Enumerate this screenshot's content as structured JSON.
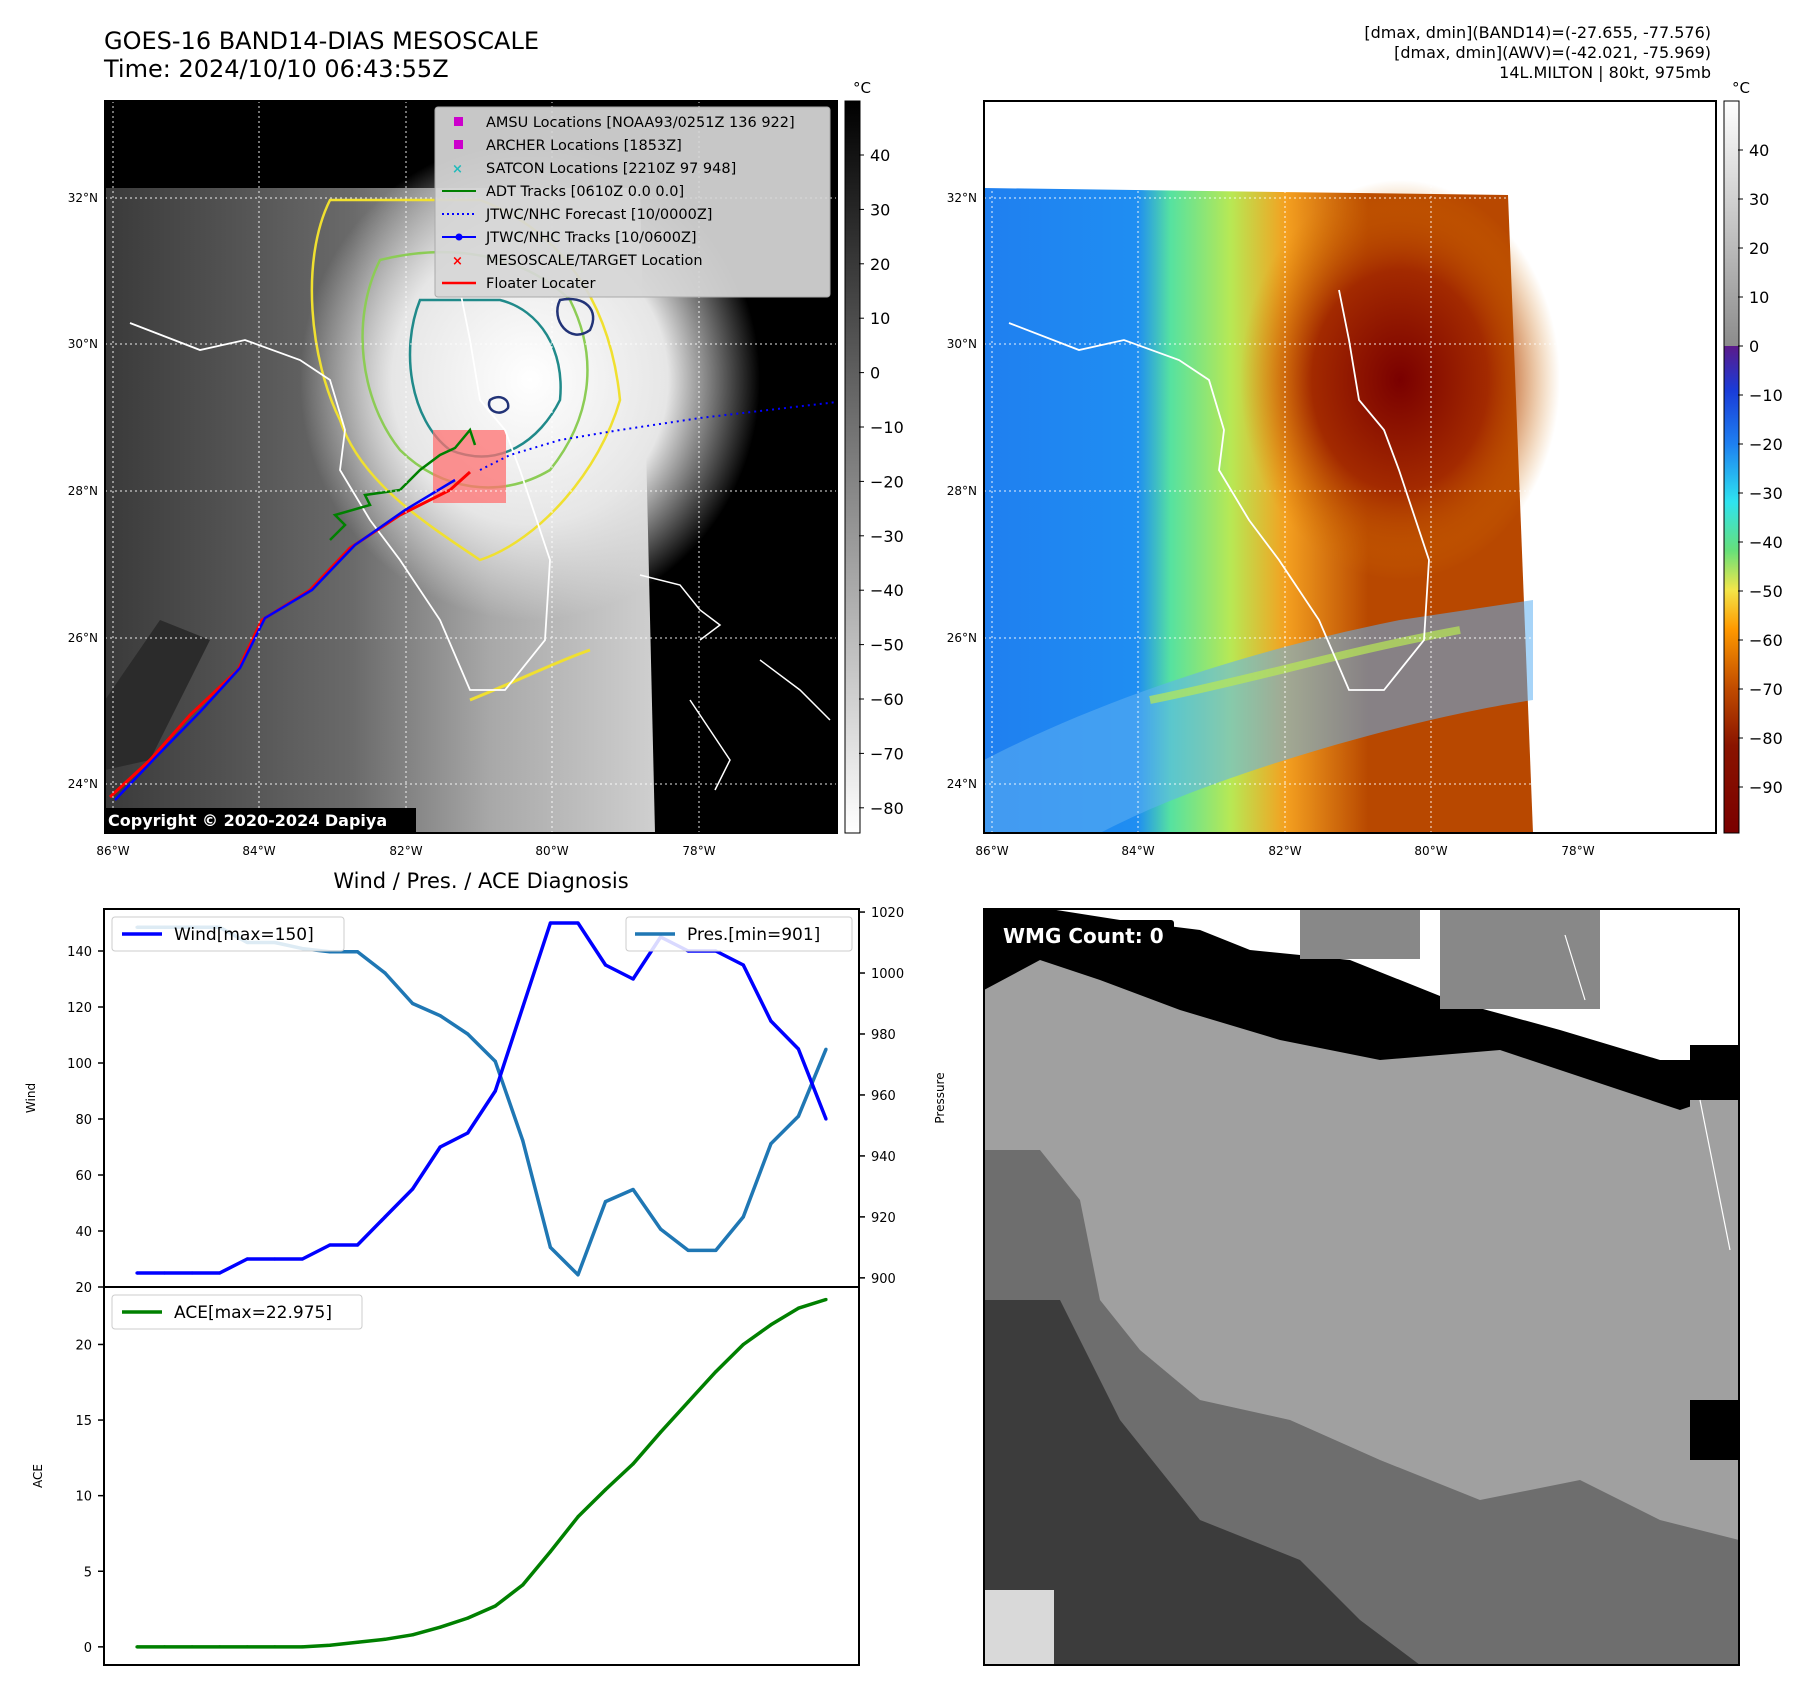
{
  "header": {
    "title_line1": "GOES-16 BAND14-DIAS MESOSCALE",
    "title_line2": "Time: 2024/10/10 06:43:55Z",
    "stats_line1": "[dmax, dmin](BAND14)=(-27.655, -77.576)",
    "stats_line2": "[dmax, dmin](AWV)=(-42.021, -75.969)",
    "stats_line3": "14L.MILTON | 80kt, 975mb"
  },
  "map": {
    "lat_labels": [
      "32°N",
      "30°N",
      "28°N",
      "26°N",
      "24°N"
    ],
    "lon_labels": [
      "86°W",
      "84°W",
      "82°W",
      "80°W",
      "78°W"
    ],
    "copyright": "Copyright © 2020-2024 Dapiya",
    "colorbar_unit": "°C",
    "band14_ticks": [
      "40",
      "30",
      "20",
      "10",
      "0",
      "−10",
      "−20",
      "−30",
      "−40",
      "−50",
      "−60",
      "−70",
      "−80"
    ],
    "awv_ticks": [
      "40",
      "30",
      "20",
      "10",
      "0",
      "−10",
      "−20",
      "−30",
      "−40",
      "−50",
      "−60",
      "−70",
      "−80",
      "−90"
    ],
    "legend": [
      {
        "label": "AMSU Locations [NOAA93/0251Z 136 922]",
        "color": "#cc00cc",
        "marker": "square"
      },
      {
        "label": "ARCHER Locations [1853Z]",
        "color": "#cc00cc",
        "marker": "square"
      },
      {
        "label": "SATCON Locations [2210Z 97 948]",
        "color": "#22bbbb",
        "marker": "x"
      },
      {
        "label": "ADT Tracks [0610Z 0.0 0.0]",
        "color": "#008000",
        "marker": "line"
      },
      {
        "label": "JTWC/NHC Forecast [10/0000Z]",
        "color": "#0000ff",
        "marker": "dotted"
      },
      {
        "label": "JTWC/NHC Tracks [10/0600Z]",
        "color": "#0000ff",
        "marker": "line-dot"
      },
      {
        "label": "MESOSCALE/TARGET Location",
        "color": "#ff0000",
        "marker": "x"
      },
      {
        "label": "Floater Locater",
        "color": "#ff0000",
        "marker": "line"
      }
    ]
  },
  "diag": {
    "title": "Wind / Pres. / ACE Diagnosis",
    "wind_ylabel": "Wind",
    "pres_ylabel": "Pressure",
    "ace_ylabel": "ACE",
    "wind_legend": "Wind[max=150]",
    "pres_legend": "Pres.[min=901]",
    "ace_legend": "ACE[max=22.975]",
    "wind_color": "#0000ff",
    "pres_color": "#1f77b4",
    "ace_color": "#008000"
  },
  "wmg": {
    "label": "WMG Count: 0"
  },
  "chart_data": [
    {
      "type": "line",
      "title": "Wind / Pres. / ACE Diagnosis",
      "ylabel": "Wind",
      "ylim": [
        20,
        155
      ],
      "yticks": [
        20,
        40,
        60,
        80,
        100,
        120,
        140
      ],
      "series": [
        {
          "name": "Wind[max=150]",
          "values": [
            25,
            25,
            25,
            25,
            30,
            30,
            30,
            35,
            35,
            45,
            55,
            70,
            75,
            90,
            120,
            150,
            150,
            135,
            130,
            145,
            140,
            140,
            135,
            115,
            105,
            80
          ]
        }
      ]
    },
    {
      "type": "line",
      "ylabel": "Pressure",
      "ylim": [
        897,
        1021
      ],
      "yticks": [
        900,
        920,
        940,
        960,
        980,
        1000,
        1020
      ],
      "series": [
        {
          "name": "Pres.[min=901]",
          "values": [
            1015,
            1015,
            1015,
            1015,
            1010,
            1010,
            1008,
            1007,
            1007,
            1000,
            990,
            986,
            980,
            971,
            945,
            910,
            901,
            925,
            929,
            916,
            909,
            909,
            920,
            944,
            953,
            975
          ]
        }
      ]
    },
    {
      "type": "line",
      "ylabel": "ACE",
      "ylim": [
        -1.2,
        23.8
      ],
      "yticks": [
        0,
        5,
        10,
        15,
        20
      ],
      "series": [
        {
          "name": "ACE[max=22.975]",
          "values": [
            0,
            0,
            0,
            0,
            0,
            0,
            0,
            0.1,
            0.3,
            0.5,
            0.8,
            1.3,
            1.9,
            2.7,
            4.1,
            6.3,
            8.6,
            10.4,
            12.1,
            14.2,
            16.2,
            18.2,
            20.0,
            21.3,
            22.4,
            22.975
          ]
        }
      ]
    }
  ]
}
